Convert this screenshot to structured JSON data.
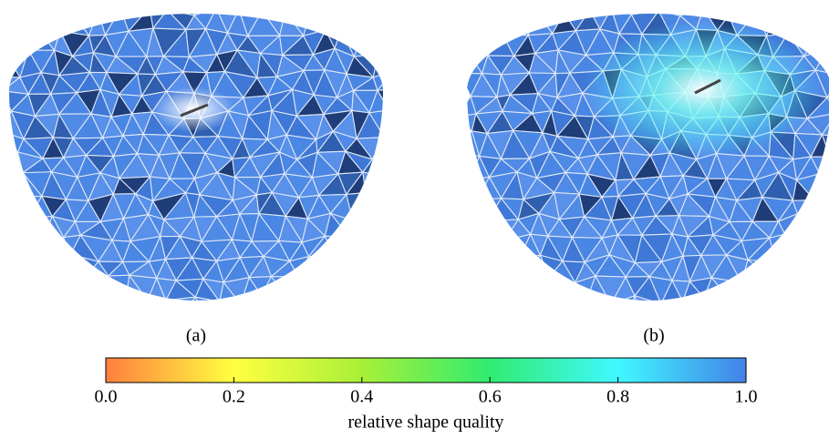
{
  "figure": {
    "panels": [
      {
        "label": "(a)"
      },
      {
        "label": "(b)"
      }
    ],
    "colorbar": {
      "label": "relative shape quality",
      "ticks": [
        {
          "value": 0,
          "label": "0.0"
        },
        {
          "value": 0.2,
          "label": "0.2"
        },
        {
          "value": 0.4,
          "label": "0.4"
        },
        {
          "value": 0.6,
          "label": "0.6"
        },
        {
          "value": 0.8,
          "label": "0.8"
        },
        {
          "value": 1,
          "label": "1.0"
        }
      ],
      "colors": [
        "#ff7f3f",
        "#ffff40",
        "#a8f038",
        "#30ec70",
        "#40f8ff",
        "#4282e8"
      ],
      "lim": [
        0,
        1
      ]
    }
  }
}
